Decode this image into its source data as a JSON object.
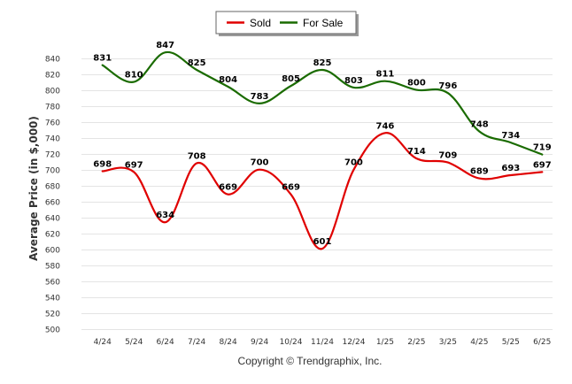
{
  "chart_data": {
    "type": "line",
    "categories": [
      "4/24",
      "5/24",
      "6/24",
      "7/24",
      "8/24",
      "9/24",
      "10/24",
      "11/24",
      "12/24",
      "1/25",
      "2/25",
      "3/25",
      "4/25",
      "5/25",
      "6/25"
    ],
    "series": [
      {
        "name": "Sold",
        "color": "#e00000",
        "values": [
          698,
          697,
          634,
          708,
          669,
          700,
          669,
          601,
          700,
          746,
          714,
          709,
          689,
          693,
          697
        ]
      },
      {
        "name": "For Sale",
        "color": "#1a6b00",
        "values": [
          831,
          810,
          847,
          825,
          804,
          783,
          805,
          825,
          803,
          811,
          800,
          796,
          748,
          734,
          719
        ]
      }
    ],
    "ylabel": "Average Price (in $,000)",
    "ylim": [
      500,
      840
    ],
    "ytick_step": 20,
    "grid": true,
    "legend": "top-center"
  },
  "footer": {
    "copyright": "Copyright © Trendgraphix, Inc."
  }
}
